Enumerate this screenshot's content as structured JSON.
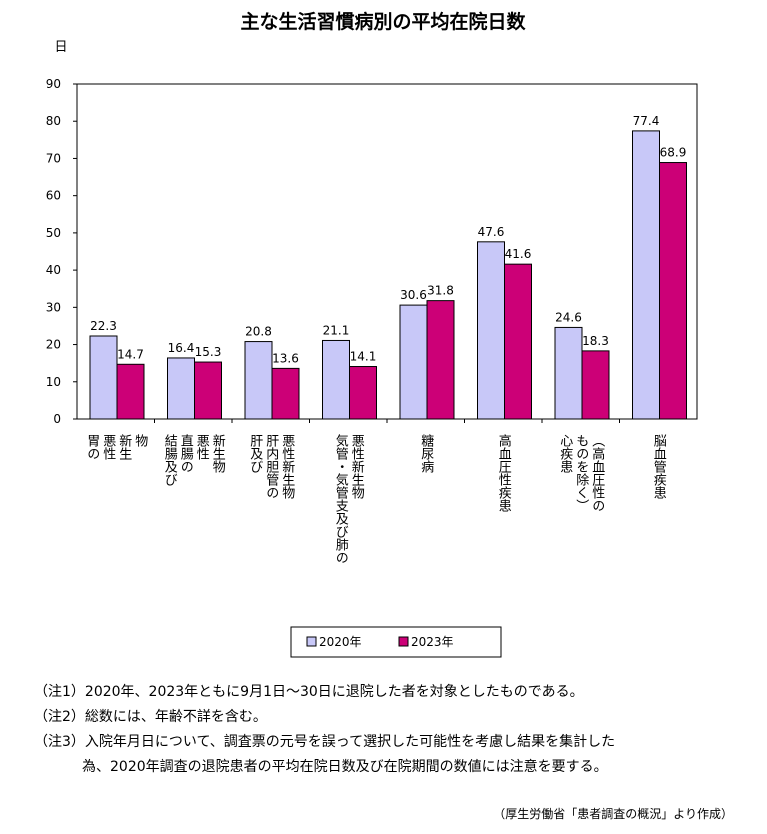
{
  "chart_data": {
    "type": "bar",
    "title": "主な生活習慣病別の平均在院日数",
    "ylabel": "日",
    "ylim": [
      0,
      90
    ],
    "yticks": [
      0,
      10,
      20,
      30,
      40,
      50,
      60,
      70,
      80,
      90
    ],
    "categories": [
      [
        "胃の",
        "悪性",
        "新生",
        "物"
      ],
      [
        "結腸及び",
        "直腸の",
        "悪性",
        "新生物"
      ],
      [
        "肝及び",
        "肝内胆管の",
        "悪性新生物"
      ],
      [
        "気管・気管支及び肺の",
        "悪性新生物"
      ],
      [
        "糖尿病"
      ],
      [
        "高血圧性疾患"
      ],
      [
        "心疾患",
        "ものを除く）",
        "（高血圧性の"
      ],
      [
        "脳血管疾患"
      ]
    ],
    "series": [
      {
        "name": "2020年",
        "color": "#c8c8f8",
        "values": [
          22.3,
          16.4,
          20.8,
          21.1,
          30.6,
          47.6,
          24.6,
          77.4
        ],
        "labels": [
          "22.3",
          "16.4",
          "20.8",
          "21.1",
          "30.6",
          "47.6",
          "24.6",
          "77.4"
        ]
      },
      {
        "name": "2023年",
        "color": "#cc0077",
        "values": [
          14.7,
          15.3,
          13.6,
          14.1,
          31.8,
          41.6,
          18.3,
          68.9
        ],
        "labels": [
          "14.7",
          "15.3",
          "13.6",
          "14.1",
          "31.8",
          "41.6",
          "18.3",
          "68.9"
        ]
      }
    ],
    "legend_position": "bottom-center",
    "grid": false
  },
  "notes": [
    "（注1）2020年、2023年ともに9月1日～30日に退院した者を対象としたものである。",
    "（注2）総数には、年齢不詳を含む。",
    "（注3）入院年月日について、調査票の元号を誤って選択した可能性を考慮し結果を集計した",
    "為、2020年調査の退院患者の平均在院日数及び在院期間の数値には注意を要する。"
  ],
  "source": "（厚生労働省「患者調査の概況」より作成）"
}
